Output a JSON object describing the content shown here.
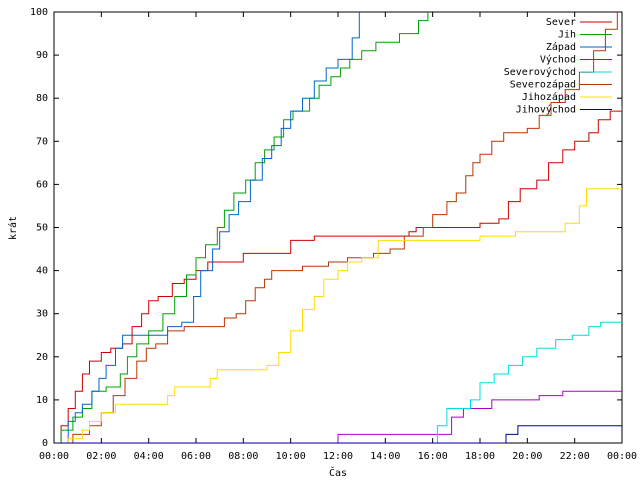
{
  "chart_data": {
    "type": "line",
    "title": "",
    "xlabel": "Čas",
    "ylabel": "krát",
    "x_ticks": [
      "00:00",
      "02:00",
      "04:00",
      "06:00",
      "08:00",
      "10:00",
      "12:00",
      "14:00",
      "16:00",
      "18:00",
      "20:00",
      "22:00",
      "00:00"
    ],
    "xlim": [
      0,
      24
    ],
    "ylim": [
      0,
      100
    ],
    "y_ticks": [
      0,
      10,
      20,
      30,
      40,
      50,
      60,
      70,
      80,
      90,
      100
    ],
    "grid": false,
    "legend_position": "top-right",
    "line_style": "step",
    "series": [
      {
        "name": "Sever",
        "color": "#cc0000",
        "points": [
          [
            0,
            0
          ],
          [
            0.3,
            4
          ],
          [
            0.6,
            8
          ],
          [
            0.9,
            12
          ],
          [
            1.2,
            16
          ],
          [
            1.5,
            19
          ],
          [
            2.0,
            21
          ],
          [
            2.4,
            22
          ],
          [
            2.9,
            23
          ],
          [
            3.3,
            27
          ],
          [
            3.7,
            30
          ],
          [
            4.0,
            33
          ],
          [
            4.4,
            34
          ],
          [
            5.0,
            37
          ],
          [
            5.5,
            38
          ],
          [
            6.0,
            40
          ],
          [
            6.5,
            42
          ],
          [
            8.0,
            44
          ],
          [
            10.0,
            47
          ],
          [
            11.0,
            48
          ],
          [
            15.0,
            49
          ],
          [
            15.3,
            50
          ],
          [
            18.0,
            51
          ],
          [
            18.8,
            52
          ],
          [
            19.2,
            56
          ],
          [
            19.7,
            59
          ],
          [
            20.4,
            61
          ],
          [
            20.9,
            65
          ],
          [
            21.5,
            68
          ],
          [
            22.0,
            70
          ],
          [
            22.6,
            72
          ],
          [
            23.0,
            75
          ],
          [
            23.5,
            77
          ],
          [
            24,
            78
          ]
        ]
      },
      {
        "name": "Jih",
        "color": "#00a000",
        "points": [
          [
            0,
            0
          ],
          [
            0.3,
            3
          ],
          [
            0.8,
            6
          ],
          [
            1.2,
            8
          ],
          [
            1.6,
            12
          ],
          [
            2.2,
            13
          ],
          [
            2.8,
            16
          ],
          [
            3.1,
            20
          ],
          [
            3.5,
            23
          ],
          [
            4.0,
            26
          ],
          [
            4.6,
            30
          ],
          [
            5.1,
            34
          ],
          [
            5.6,
            39
          ],
          [
            6.0,
            43
          ],
          [
            6.4,
            46
          ],
          [
            6.9,
            50
          ],
          [
            7.2,
            54
          ],
          [
            7.6,
            58
          ],
          [
            8.1,
            61
          ],
          [
            8.5,
            65
          ],
          [
            8.9,
            68
          ],
          [
            9.3,
            71
          ],
          [
            9.7,
            75
          ],
          [
            10.1,
            77
          ],
          [
            10.8,
            80
          ],
          [
            11.2,
            83
          ],
          [
            11.7,
            85
          ],
          [
            12.1,
            87
          ],
          [
            12.5,
            89
          ],
          [
            13.0,
            91
          ],
          [
            13.6,
            93
          ],
          [
            14.6,
            95
          ],
          [
            15.4,
            98
          ],
          [
            15.8,
            100
          ]
        ]
      },
      {
        "name": "Západ",
        "color": "#0066cc",
        "points": [
          [
            0,
            0
          ],
          [
            0.6,
            5
          ],
          [
            0.9,
            7
          ],
          [
            1.2,
            9
          ],
          [
            1.6,
            12
          ],
          [
            1.9,
            15
          ],
          [
            2.2,
            18
          ],
          [
            2.6,
            22
          ],
          [
            2.9,
            25
          ],
          [
            3.3,
            25
          ],
          [
            4.0,
            25
          ],
          [
            4.8,
            27
          ],
          [
            5.4,
            28
          ],
          [
            5.9,
            34
          ],
          [
            6.2,
            40
          ],
          [
            6.7,
            45
          ],
          [
            7.0,
            49
          ],
          [
            7.4,
            53
          ],
          [
            7.8,
            56
          ],
          [
            8.3,
            61
          ],
          [
            8.8,
            66
          ],
          [
            9.2,
            69
          ],
          [
            9.6,
            73
          ],
          [
            10.0,
            77
          ],
          [
            10.5,
            80
          ],
          [
            11.0,
            84
          ],
          [
            11.5,
            87
          ],
          [
            12.0,
            89
          ],
          [
            12.6,
            94
          ],
          [
            12.9,
            100
          ]
        ]
      },
      {
        "name": "Východ",
        "color": "#aa00cc",
        "points": [
          [
            0,
            0
          ],
          [
            11.8,
            0
          ],
          [
            12.0,
            2
          ],
          [
            16.5,
            2
          ],
          [
            16.8,
            6
          ],
          [
            17.3,
            8
          ],
          [
            18.0,
            8
          ],
          [
            18.5,
            10
          ],
          [
            20.5,
            11
          ],
          [
            21.5,
            12
          ],
          [
            24,
            12
          ]
        ]
      },
      {
        "name": "Severovýchod",
        "color": "#00dddd",
        "points": [
          [
            0,
            0
          ],
          [
            16.0,
            0
          ],
          [
            16.2,
            4
          ],
          [
            16.6,
            8
          ],
          [
            17.2,
            8
          ],
          [
            17.6,
            10
          ],
          [
            18.0,
            14
          ],
          [
            18.6,
            16
          ],
          [
            19.2,
            18
          ],
          [
            19.8,
            20
          ],
          [
            20.4,
            22
          ],
          [
            21.2,
            24
          ],
          [
            21.9,
            25
          ],
          [
            22.6,
            27
          ],
          [
            23.1,
            28
          ],
          [
            24,
            28
          ]
        ]
      },
      {
        "name": "Severozápad",
        "color": "#bb3300",
        "points": [
          [
            0,
            0
          ],
          [
            0.8,
            2
          ],
          [
            1.5,
            4
          ],
          [
            2.0,
            7
          ],
          [
            2.5,
            11
          ],
          [
            3.0,
            15
          ],
          [
            3.5,
            19
          ],
          [
            3.9,
            22
          ],
          [
            4.3,
            23
          ],
          [
            4.8,
            26
          ],
          [
            5.5,
            27
          ],
          [
            6.9,
            27
          ],
          [
            7.2,
            29
          ],
          [
            7.7,
            30
          ],
          [
            8.1,
            33
          ],
          [
            8.5,
            36
          ],
          [
            8.9,
            38
          ],
          [
            9.2,
            40
          ],
          [
            10.5,
            41
          ],
          [
            11.6,
            42
          ],
          [
            12.4,
            43
          ],
          [
            13.0,
            43
          ],
          [
            13.5,
            44
          ],
          [
            14.2,
            45
          ],
          [
            14.8,
            48
          ],
          [
            15.6,
            50
          ],
          [
            16.0,
            53
          ],
          [
            16.6,
            56
          ],
          [
            17.0,
            58
          ],
          [
            17.4,
            62
          ],
          [
            17.7,
            65
          ],
          [
            18.0,
            67
          ],
          [
            18.5,
            70
          ],
          [
            19.0,
            72
          ],
          [
            20.0,
            73
          ],
          [
            20.5,
            76
          ],
          [
            21.0,
            79
          ],
          [
            21.6,
            82
          ],
          [
            22.2,
            86
          ],
          [
            22.8,
            91
          ],
          [
            23.3,
            96
          ],
          [
            23.8,
            100
          ]
        ]
      },
      {
        "name": "Jihozápad",
        "color": "#ffdd00",
        "points": [
          [
            0,
            0
          ],
          [
            0.6,
            1
          ],
          [
            1.2,
            3
          ],
          [
            1.5,
            5
          ],
          [
            2.0,
            7
          ],
          [
            2.6,
            9
          ],
          [
            3.1,
            9
          ],
          [
            3.6,
            9
          ],
          [
            4.4,
            9
          ],
          [
            4.8,
            11
          ],
          [
            5.1,
            13
          ],
          [
            6.6,
            15
          ],
          [
            6.9,
            17
          ],
          [
            8.6,
            17
          ],
          [
            9.0,
            18
          ],
          [
            9.5,
            21
          ],
          [
            10.0,
            26
          ],
          [
            10.5,
            31
          ],
          [
            11.0,
            34
          ],
          [
            11.4,
            38
          ],
          [
            12.0,
            40
          ],
          [
            12.4,
            42
          ],
          [
            13.0,
            43
          ],
          [
            13.7,
            47
          ],
          [
            14.2,
            47
          ],
          [
            17.0,
            47
          ],
          [
            18.0,
            48
          ],
          [
            19.5,
            49
          ],
          [
            20.2,
            49
          ],
          [
            21.0,
            49
          ],
          [
            21.6,
            51
          ],
          [
            22.2,
            55
          ],
          [
            22.5,
            59
          ],
          [
            24,
            59
          ]
        ]
      },
      {
        "name": "Jihovýchod",
        "color": "#000099",
        "points": [
          [
            0,
            0
          ],
          [
            18.8,
            0
          ],
          [
            19.1,
            2
          ],
          [
            19.6,
            4
          ],
          [
            24,
            4
          ]
        ]
      }
    ]
  }
}
